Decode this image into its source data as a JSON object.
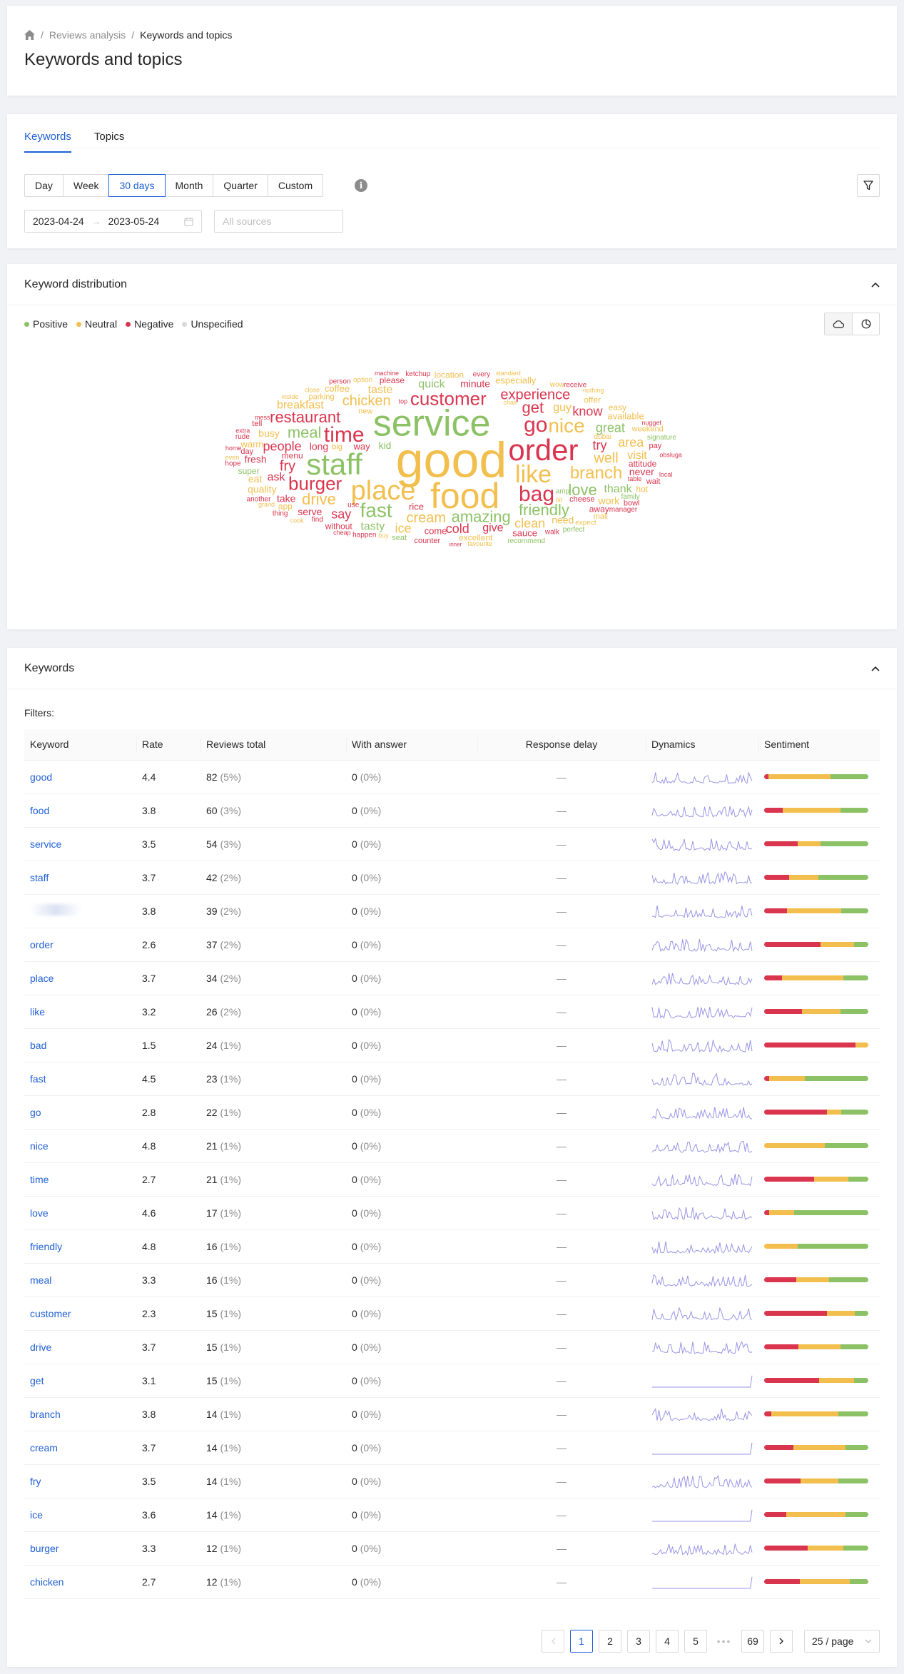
{
  "breadcrumb": {
    "home_icon": "home-icon",
    "items": [
      "Reviews analysis",
      "Keywords and topics"
    ]
  },
  "page_title": "Keywords and topics",
  "tabs": [
    "Keywords",
    "Topics"
  ],
  "active_tab": "Keywords",
  "period_options": [
    "Day",
    "Week",
    "30 days",
    "Month",
    "Quarter",
    "Custom"
  ],
  "active_period": "30 days",
  "date_range": {
    "start": "2023-04-24",
    "end": "2023-05-24"
  },
  "sources_placeholder": "All sources",
  "distribution": {
    "title": "Keyword distribution",
    "legend": [
      {
        "label": "Positive",
        "color": "#8cc265"
      },
      {
        "label": "Neutral",
        "color": "#f2bf4e"
      },
      {
        "label": "Negative",
        "color": "#d9354e"
      },
      {
        "label": "Unspecified",
        "color": "#d9d9d9"
      }
    ]
  },
  "cloud_words": [
    {
      "t": "good",
      "c": "n",
      "s": 70
    },
    {
      "t": "service",
      "c": "p",
      "s": 52
    },
    {
      "t": "food",
      "c": "n",
      "s": 50
    },
    {
      "t": "order",
      "c": "x",
      "s": 42
    },
    {
      "t": "staff",
      "c": "p",
      "s": 42
    },
    {
      "t": "place",
      "c": "n",
      "s": 38
    },
    {
      "t": "like",
      "c": "n",
      "s": 34
    },
    {
      "t": "time",
      "c": "x",
      "s": 30
    },
    {
      "t": "bag",
      "c": "x",
      "s": 30
    },
    {
      "t": "go",
      "c": "x",
      "s": 30
    },
    {
      "t": "fast",
      "c": "p",
      "s": 28
    },
    {
      "t": "nice",
      "c": "n",
      "s": 28
    },
    {
      "t": "customer",
      "c": "x",
      "s": 26
    },
    {
      "t": "burger",
      "c": "x",
      "s": 26
    },
    {
      "t": "branch",
      "c": "n",
      "s": 24
    },
    {
      "t": "amazing",
      "c": "p",
      "s": 22
    },
    {
      "t": "restaurant",
      "c": "x",
      "s": 22
    },
    {
      "t": "friendly",
      "c": "p",
      "s": 22
    },
    {
      "t": "love",
      "c": "p",
      "s": 22
    },
    {
      "t": "meal",
      "c": "p",
      "s": 22
    },
    {
      "t": "get",
      "c": "x",
      "s": 22
    },
    {
      "t": "drive",
      "c": "n",
      "s": 22
    },
    {
      "t": "chicken",
      "c": "n",
      "s": 20
    },
    {
      "t": "cream",
      "c": "n",
      "s": 20
    },
    {
      "t": "experience",
      "c": "x",
      "s": 20
    },
    {
      "t": "well",
      "c": "n",
      "s": 20
    },
    {
      "t": "fry",
      "c": "x",
      "s": 20
    },
    {
      "t": "people",
      "c": "x",
      "s": 18
    },
    {
      "t": "try",
      "c": "x",
      "s": 18
    },
    {
      "t": "know",
      "c": "x",
      "s": 18
    },
    {
      "t": "great",
      "c": "p",
      "s": 18
    },
    {
      "t": "cold",
      "c": "x",
      "s": 18
    },
    {
      "t": "say",
      "c": "x",
      "s": 18
    },
    {
      "t": "area",
      "c": "n",
      "s": 18
    },
    {
      "t": "clean",
      "c": "n",
      "s": 18
    },
    {
      "t": "ice",
      "c": "n",
      "s": 18
    },
    {
      "t": "quick",
      "c": "p",
      "s": 16
    },
    {
      "t": "give",
      "c": "x",
      "s": 16
    },
    {
      "t": "taste",
      "c": "n",
      "s": 16
    },
    {
      "t": "guy",
      "c": "n",
      "s": 16
    },
    {
      "t": "tasty",
      "c": "p",
      "s": 16
    },
    {
      "t": "ask",
      "c": "x",
      "s": 16
    },
    {
      "t": "minute",
      "c": "x",
      "s": 14
    },
    {
      "t": "thank",
      "c": "p",
      "s": 16
    },
    {
      "t": "breakfast",
      "c": "n",
      "s": 16
    },
    {
      "t": "visit",
      "c": "n",
      "s": 16
    },
    {
      "t": "long",
      "c": "x",
      "s": 14
    },
    {
      "t": "fresh",
      "c": "x",
      "s": 14
    },
    {
      "t": "kid",
      "c": "p",
      "s": 14
    },
    {
      "t": "busy",
      "c": "n",
      "s": 14
    },
    {
      "t": "never",
      "c": "x",
      "s": 14
    },
    {
      "t": "serve",
      "c": "x",
      "s": 14
    },
    {
      "t": "need",
      "c": "n",
      "s": 14
    },
    {
      "t": "work",
      "c": "n",
      "s": 14
    },
    {
      "t": "rice",
      "c": "x",
      "s": 13
    },
    {
      "t": "sauce",
      "c": "x",
      "s": 13
    },
    {
      "t": "take",
      "c": "x",
      "s": 14
    },
    {
      "t": "come",
      "c": "x",
      "s": 13
    },
    {
      "t": "way",
      "c": "x",
      "s": 13
    },
    {
      "t": "coffee",
      "c": "n",
      "s": 13
    },
    {
      "t": "please",
      "c": "x",
      "s": 12
    },
    {
      "t": "attitude",
      "c": "x",
      "s": 12
    },
    {
      "t": "excellent",
      "c": "n",
      "s": 12
    },
    {
      "t": "eat",
      "c": "n",
      "s": 14
    },
    {
      "t": "without",
      "c": "x",
      "s": 12
    },
    {
      "t": "quality",
      "c": "n",
      "s": 14
    },
    {
      "t": "especially",
      "c": "n",
      "s": 13
    },
    {
      "t": "available",
      "c": "n",
      "s": 13
    },
    {
      "t": "location",
      "c": "n",
      "s": 12
    },
    {
      "t": "warm",
      "c": "n",
      "s": 13
    },
    {
      "t": "easy",
      "c": "n",
      "s": 12
    },
    {
      "t": "super",
      "c": "p",
      "s": 12
    },
    {
      "t": "parking",
      "c": "n",
      "s": 11
    },
    {
      "t": "cheese",
      "c": "x",
      "s": 11
    },
    {
      "t": "ketchup",
      "c": "x",
      "s": 10
    },
    {
      "t": "manager",
      "c": "x",
      "s": 10
    },
    {
      "t": "counter",
      "c": "x",
      "s": 11
    },
    {
      "t": "weekend",
      "c": "n",
      "s": 11
    },
    {
      "t": "menu",
      "c": "x",
      "s": 12
    },
    {
      "t": "seat",
      "c": "p",
      "s": 11
    },
    {
      "t": "hot",
      "c": "n",
      "s": 12
    },
    {
      "t": "big",
      "c": "n",
      "s": 11
    },
    {
      "t": "pay",
      "c": "x",
      "s": 11
    },
    {
      "t": "bowl",
      "c": "x",
      "s": 11
    },
    {
      "t": "offer",
      "c": "n",
      "s": 12
    },
    {
      "t": "away",
      "c": "x",
      "s": 12
    },
    {
      "t": "tell",
      "c": "x",
      "s": 11
    },
    {
      "t": "family",
      "c": "p",
      "s": 10
    },
    {
      "t": "recommend",
      "c": "p",
      "s": 10
    },
    {
      "t": "walk",
      "c": "x",
      "s": 10
    },
    {
      "t": "happen",
      "c": "x",
      "s": 10
    },
    {
      "t": "signature",
      "c": "p",
      "s": 10
    },
    {
      "t": "rude",
      "c": "x",
      "s": 10
    },
    {
      "t": "option",
      "c": "n",
      "s": 10
    },
    {
      "t": "wait",
      "c": "x",
      "s": 11
    },
    {
      "t": "amp",
      "c": "p",
      "s": 10
    },
    {
      "t": "every",
      "c": "x",
      "s": 10
    },
    {
      "t": "another",
      "c": "x",
      "s": 10
    },
    {
      "t": "fantastic",
      "c": "p",
      "s": 9
    },
    {
      "t": "mall",
      "c": "n",
      "s": 11
    },
    {
      "t": "dubai",
      "c": "n",
      "s": 10
    },
    {
      "t": "expect",
      "c": "n",
      "s": 10
    },
    {
      "t": "perfect",
      "c": "p",
      "s": 10
    },
    {
      "t": "find",
      "c": "x",
      "s": 10
    },
    {
      "t": "crowd",
      "c": "n",
      "s": 10
    },
    {
      "t": "nugget",
      "c": "x",
      "s": 9
    },
    {
      "t": "mess",
      "c": "x",
      "s": 9
    },
    {
      "t": "hamburguesa",
      "c": "x",
      "s": 9
    },
    {
      "t": "thing",
      "c": "x",
      "s": 10
    },
    {
      "t": "machine",
      "c": "x",
      "s": 9
    },
    {
      "t": "person",
      "c": "x",
      "s": 10
    },
    {
      "t": "receive",
      "c": "x",
      "s": 10
    },
    {
      "t": "hope",
      "c": "x",
      "s": 10
    },
    {
      "t": "employee",
      "c": "x",
      "s": 9
    },
    {
      "t": "standard",
      "c": "n",
      "s": 9
    },
    {
      "t": "new",
      "c": "n",
      "s": 11
    },
    {
      "t": "chair",
      "c": "n",
      "s": 9
    },
    {
      "t": "believe",
      "c": "x",
      "s": 9
    },
    {
      "t": "favourite",
      "c": "n",
      "s": 9
    },
    {
      "t": "cook",
      "c": "n",
      "s": 9
    },
    {
      "t": "treat",
      "c": "n",
      "s": 9
    },
    {
      "t": "special",
      "c": "n",
      "s": 9
    },
    {
      "t": "buy",
      "c": "n",
      "s": 9
    },
    {
      "t": "home",
      "c": "x",
      "s": 9
    },
    {
      "t": "nothing",
      "c": "n",
      "s": 9
    },
    {
      "t": "spicy",
      "c": "n",
      "s": 9
    },
    {
      "t": "literally",
      "c": "p",
      "s": 8
    },
    {
      "t": "morning",
      "c": "n",
      "s": 8
    },
    {
      "t": "inner",
      "c": "x",
      "s": 8
    },
    {
      "t": "humble",
      "c": "x",
      "s": 8
    },
    {
      "t": "extra",
      "c": "x",
      "s": 9
    },
    {
      "t": "obsluga",
      "c": "x",
      "s": 9
    },
    {
      "t": "convenient",
      "c": "n",
      "s": 9
    },
    {
      "t": "favorite",
      "c": "p",
      "s": 9
    },
    {
      "t": "delicious",
      "c": "p",
      "s": 9
    },
    {
      "t": "grand",
      "c": "n",
      "s": 9
    },
    {
      "t": "locate",
      "c": "n",
      "s": 9
    },
    {
      "t": "helpful",
      "c": "n",
      "s": 9
    },
    {
      "t": "close",
      "c": "n",
      "s": 9
    },
    {
      "t": "top",
      "c": "x",
      "s": 9
    },
    {
      "t": "day",
      "c": "x",
      "s": 11
    },
    {
      "t": "local",
      "c": "x",
      "s": 9
    },
    {
      "t": "year",
      "c": "n",
      "s": 9
    },
    {
      "t": "wow",
      "c": "n",
      "s": 10
    },
    {
      "t": "use",
      "c": "x",
      "s": 10
    },
    {
      "t": "table",
      "c": "x",
      "s": 9
    },
    {
      "t": "cheap",
      "c": "x",
      "s": 9
    },
    {
      "t": "app",
      "c": "n",
      "s": 12
    },
    {
      "t": "lot",
      "c": "n",
      "s": 9
    },
    {
      "t": "inside",
      "c": "n",
      "s": 9
    },
    {
      "t": "even",
      "c": "n",
      "s": 9
    },
    {
      "t": "bit",
      "c": "n",
      "s": 9
    }
  ],
  "keywords_card": {
    "title": "Keywords",
    "filters_label": "Filters:"
  },
  "table": {
    "columns": [
      "Keyword",
      "Rate",
      "Reviews total",
      "With answer",
      "Response delay",
      "Dynamics",
      "Sentiment"
    ],
    "rows": [
      {
        "kw": "good",
        "rate": "4.4",
        "total": "82",
        "tpct": "(5%)",
        "ans": "0",
        "apct": "(0%)",
        "delay": "—",
        "neg": 4,
        "neu": 60,
        "pos": 36,
        "seed": 1,
        "flat": false
      },
      {
        "kw": "food",
        "rate": "3.8",
        "total": "60",
        "tpct": "(3%)",
        "ans": "0",
        "apct": "(0%)",
        "delay": "—",
        "neg": 18,
        "neu": 55,
        "pos": 27,
        "seed": 2,
        "flat": false
      },
      {
        "kw": "service",
        "rate": "3.5",
        "total": "54",
        "tpct": "(3%)",
        "ans": "0",
        "apct": "(0%)",
        "delay": "—",
        "neg": 32,
        "neu": 22,
        "pos": 46,
        "seed": 3,
        "flat": false
      },
      {
        "kw": "staff",
        "rate": "3.7",
        "total": "42",
        "tpct": "(2%)",
        "ans": "0",
        "apct": "(0%)",
        "delay": "—",
        "neg": 24,
        "neu": 28,
        "pos": 48,
        "seed": 4,
        "flat": false
      },
      {
        "kw": "",
        "rate": "3.8",
        "total": "39",
        "tpct": "(2%)",
        "ans": "0",
        "apct": "(0%)",
        "delay": "—",
        "neg": 22,
        "neu": 52,
        "pos": 26,
        "seed": 5,
        "flat": false
      },
      {
        "kw": "order",
        "rate": "2.6",
        "total": "37",
        "tpct": "(2%)",
        "ans": "0",
        "apct": "(0%)",
        "delay": "—",
        "neg": 54,
        "neu": 32,
        "pos": 14,
        "seed": 6,
        "flat": false
      },
      {
        "kw": "place",
        "rate": "3.7",
        "total": "34",
        "tpct": "(2%)",
        "ans": "0",
        "apct": "(0%)",
        "delay": "—",
        "neg": 17,
        "neu": 59,
        "pos": 24,
        "seed": 7,
        "flat": false
      },
      {
        "kw": "like",
        "rate": "3.2",
        "total": "26",
        "tpct": "(2%)",
        "ans": "0",
        "apct": "(0%)",
        "delay": "—",
        "neg": 36,
        "neu": 37,
        "pos": 27,
        "seed": 8,
        "flat": false
      },
      {
        "kw": "bad",
        "rate": "1.5",
        "total": "24",
        "tpct": "(1%)",
        "ans": "0",
        "apct": "(0%)",
        "delay": "—",
        "neg": 88,
        "neu": 12,
        "pos": 0,
        "seed": 9,
        "flat": false
      },
      {
        "kw": "fast",
        "rate": "4.5",
        "total": "23",
        "tpct": "(1%)",
        "ans": "0",
        "apct": "(0%)",
        "delay": "—",
        "neg": 5,
        "neu": 34,
        "pos": 61,
        "seed": 10,
        "flat": false
      },
      {
        "kw": "go",
        "rate": "2.8",
        "total": "22",
        "tpct": "(1%)",
        "ans": "0",
        "apct": "(0%)",
        "delay": "—",
        "neg": 60,
        "neu": 14,
        "pos": 26,
        "seed": 11,
        "flat": false
      },
      {
        "kw": "nice",
        "rate": "4.8",
        "total": "21",
        "tpct": "(1%)",
        "ans": "0",
        "apct": "(0%)",
        "delay": "—",
        "neg": 0,
        "neu": 58,
        "pos": 42,
        "seed": 12,
        "flat": false
      },
      {
        "kw": "time",
        "rate": "2.7",
        "total": "21",
        "tpct": "(1%)",
        "ans": "0",
        "apct": "(0%)",
        "delay": "—",
        "neg": 48,
        "neu": 33,
        "pos": 19,
        "seed": 13,
        "flat": false
      },
      {
        "kw": "love",
        "rate": "4.6",
        "total": "17",
        "tpct": "(1%)",
        "ans": "0",
        "apct": "(0%)",
        "delay": "—",
        "neg": 5,
        "neu": 24,
        "pos": 71,
        "seed": 14,
        "flat": false
      },
      {
        "kw": "friendly",
        "rate": "4.8",
        "total": "16",
        "tpct": "(1%)",
        "ans": "0",
        "apct": "(0%)",
        "delay": "—",
        "neg": 0,
        "neu": 32,
        "pos": 68,
        "seed": 15,
        "flat": false
      },
      {
        "kw": "meal",
        "rate": "3.3",
        "total": "16",
        "tpct": "(1%)",
        "ans": "0",
        "apct": "(0%)",
        "delay": "—",
        "neg": 31,
        "neu": 31,
        "pos": 38,
        "seed": 16,
        "flat": false
      },
      {
        "kw": "customer",
        "rate": "2.3",
        "total": "15",
        "tpct": "(1%)",
        "ans": "0",
        "apct": "(0%)",
        "delay": "—",
        "neg": 60,
        "neu": 27,
        "pos": 13,
        "seed": 17,
        "flat": false
      },
      {
        "kw": "drive",
        "rate": "3.7",
        "total": "15",
        "tpct": "(1%)",
        "ans": "0",
        "apct": "(0%)",
        "delay": "—",
        "neg": 33,
        "neu": 40,
        "pos": 27,
        "seed": 18,
        "flat": false
      },
      {
        "kw": "get",
        "rate": "3.1",
        "total": "15",
        "tpct": "(1%)",
        "ans": "0",
        "apct": "(0%)",
        "delay": "—",
        "neg": 53,
        "neu": 33,
        "pos": 14,
        "seed": 19,
        "flat": true
      },
      {
        "kw": "branch",
        "rate": "3.8",
        "total": "14",
        "tpct": "(1%)",
        "ans": "0",
        "apct": "(0%)",
        "delay": "—",
        "neg": 7,
        "neu": 64,
        "pos": 29,
        "seed": 20,
        "flat": false
      },
      {
        "kw": "cream",
        "rate": "3.7",
        "total": "14",
        "tpct": "(1%)",
        "ans": "0",
        "apct": "(0%)",
        "delay": "—",
        "neg": 28,
        "neu": 50,
        "pos": 22,
        "seed": 21,
        "flat": true
      },
      {
        "kw": "fry",
        "rate": "3.5",
        "total": "14",
        "tpct": "(1%)",
        "ans": "0",
        "apct": "(0%)",
        "delay": "—",
        "neg": 35,
        "neu": 36,
        "pos": 29,
        "seed": 22,
        "flat": false
      },
      {
        "kw": "ice",
        "rate": "3.6",
        "total": "14",
        "tpct": "(1%)",
        "ans": "0",
        "apct": "(0%)",
        "delay": "—",
        "neg": 21,
        "neu": 57,
        "pos": 22,
        "seed": 23,
        "flat": true
      },
      {
        "kw": "burger",
        "rate": "3.3",
        "total": "12",
        "tpct": "(1%)",
        "ans": "0",
        "apct": "(0%)",
        "delay": "—",
        "neg": 42,
        "neu": 34,
        "pos": 24,
        "seed": 24,
        "flat": false
      },
      {
        "kw": "chicken",
        "rate": "2.7",
        "total": "12",
        "tpct": "(1%)",
        "ans": "0",
        "apct": "(0%)",
        "delay": "—",
        "neg": 34,
        "neu": 48,
        "pos": 18,
        "seed": 25,
        "flat": true
      }
    ]
  },
  "pagination": {
    "pages": [
      "1",
      "2",
      "3",
      "4",
      "5"
    ],
    "ellipsis": "•••",
    "last": "69",
    "current": "1",
    "page_size": "25 / page"
  },
  "colors": {
    "positive": "#8cc265",
    "neutral": "#f2bf4e",
    "negative": "#d9354e",
    "accent": "#1f5fd6",
    "spark": "#9a95e6"
  }
}
